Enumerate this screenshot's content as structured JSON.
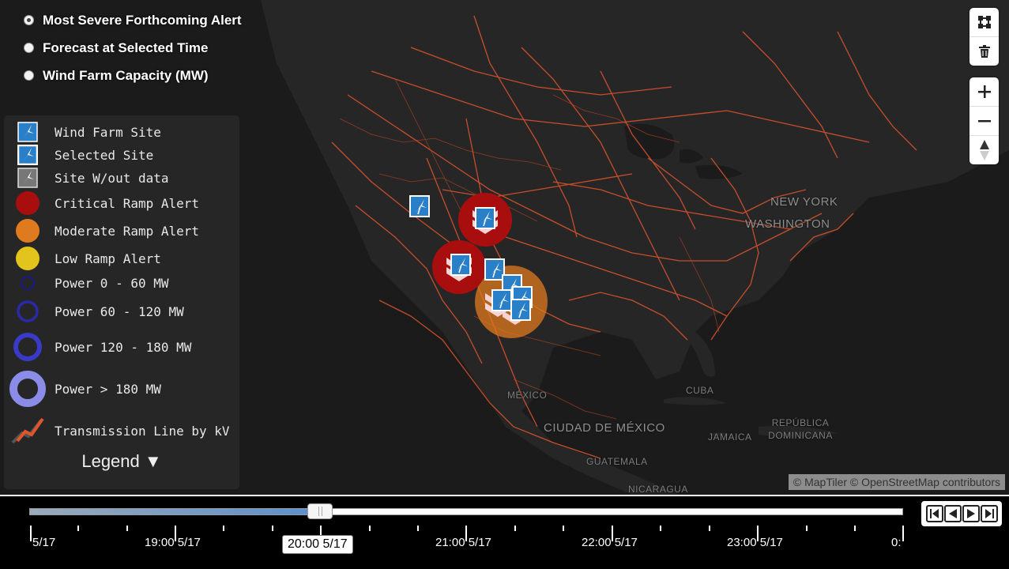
{
  "view_modes": [
    {
      "label": "Most Severe Forthcoming Alert",
      "selected": true
    },
    {
      "label": "Forecast at Selected Time",
      "selected": false
    },
    {
      "label": "Wind Farm Capacity (MW)",
      "selected": false
    }
  ],
  "legend": {
    "items": [
      {
        "label": "Wind Farm Site",
        "icon": "wind-farm-icon"
      },
      {
        "label": "Selected Site",
        "icon": "selected-site-icon"
      },
      {
        "label": "Site W/out data",
        "icon": "no-data-site-icon"
      },
      {
        "label": "Critical Ramp Alert",
        "color": "#a80e0e"
      },
      {
        "label": "Moderate Ramp Alert",
        "color": "#e07a1e"
      },
      {
        "label": "Low Ramp Alert",
        "color": "#e3c41c"
      },
      {
        "label": "Power 0 - 60 MW"
      },
      {
        "label": "Power 60 - 120 MW"
      },
      {
        "label": "Power 120 - 180 MW"
      },
      {
        "label": "Power > 180 MW"
      },
      {
        "label": "Transmission Line by kV"
      }
    ],
    "toggle_label": "Legend ▼"
  },
  "map_labels": [
    "NEW YORK",
    "WASHINGTON",
    "MÉXICO",
    "CIUDAD DE MÉXICO",
    "CUBA",
    "JAMAICA",
    "REPÚBLICA DOMINICANA",
    "GUATEMALA",
    "NICARAGUA"
  ],
  "colors": {
    "transmission_line": "#e2552b",
    "critical": "#a80e0e",
    "moderate": "#e07a1e",
    "low": "#e3c41c",
    "site_icon": "#2a7fc9"
  },
  "map_controls": [
    "draw-polygon-icon",
    "trash-icon",
    "zoom-in-icon",
    "zoom-out-icon",
    "compass-icon"
  ],
  "attribution": "© MapTiler © OpenStreetMap contributors",
  "timeline": {
    "tick_labels": [
      "5/17",
      "19:00 5/17",
      "21:00 5/17",
      "22:00 5/17",
      "23:00 5/17",
      "0:"
    ],
    "current_time": "20:00 5/17",
    "progress": 0.33
  },
  "playback_controls": [
    "skip-start-icon",
    "step-back-icon",
    "step-forward-icon",
    "skip-end-icon"
  ]
}
